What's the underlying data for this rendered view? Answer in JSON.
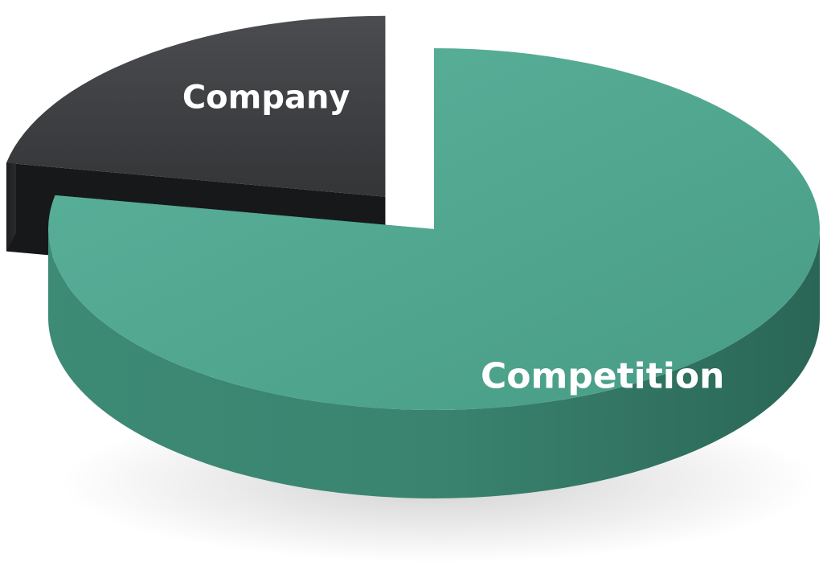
{
  "chart_data": {
    "type": "pie",
    "style": "3d-exploded",
    "categories": [
      "Company",
      "Competition"
    ],
    "values": [
      22,
      78
    ],
    "labels": [
      "Company",
      "Competition"
    ],
    "colors": {
      "Company": "#3a3c3e",
      "Competition": "#4fa68f"
    },
    "exploded": [
      "Company"
    ],
    "legend": "none",
    "title": ""
  }
}
